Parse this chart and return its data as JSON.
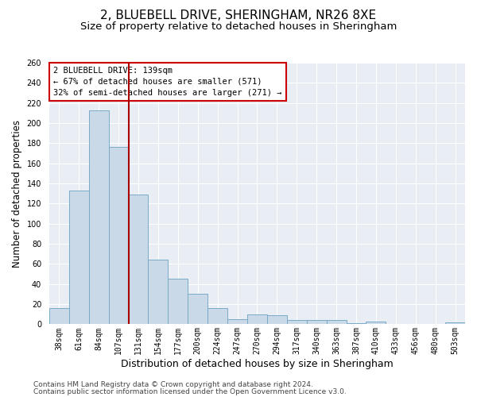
{
  "title": "2, BLUEBELL DRIVE, SHERINGHAM, NR26 8XE",
  "subtitle": "Size of property relative to detached houses in Sheringham",
  "xlabel": "Distribution of detached houses by size in Sheringham",
  "ylabel": "Number of detached properties",
  "categories": [
    "38sqm",
    "61sqm",
    "84sqm",
    "107sqm",
    "131sqm",
    "154sqm",
    "177sqm",
    "200sqm",
    "224sqm",
    "247sqm",
    "270sqm",
    "294sqm",
    "317sqm",
    "340sqm",
    "363sqm",
    "387sqm",
    "410sqm",
    "433sqm",
    "456sqm",
    "480sqm",
    "503sqm"
  ],
  "values": [
    16,
    133,
    213,
    176,
    129,
    64,
    45,
    30,
    16,
    5,
    10,
    9,
    4,
    4,
    4,
    1,
    3,
    0,
    0,
    0,
    2
  ],
  "bar_color": "#c9d9e8",
  "bar_edge_color": "#7aaac8",
  "background_color": "#e8eef4",
  "vline_color": "#aa0000",
  "vline_x_index": 4,
  "ylim": [
    0,
    260
  ],
  "yticks": [
    0,
    20,
    40,
    60,
    80,
    100,
    120,
    140,
    160,
    180,
    200,
    220,
    240,
    260
  ],
  "annotation_text": "2 BLUEBELL DRIVE: 139sqm\n← 67% of detached houses are smaller (571)\n32% of semi-detached houses are larger (271) →",
  "footer1": "Contains HM Land Registry data © Crown copyright and database right 2024.",
  "footer2": "Contains public sector information licensed under the Open Government Licence v3.0.",
  "title_fontsize": 11,
  "subtitle_fontsize": 9.5,
  "xlabel_fontsize": 9,
  "ylabel_fontsize": 8.5,
  "tick_fontsize": 7,
  "annotation_fontsize": 7.5,
  "footer_fontsize": 6.5
}
